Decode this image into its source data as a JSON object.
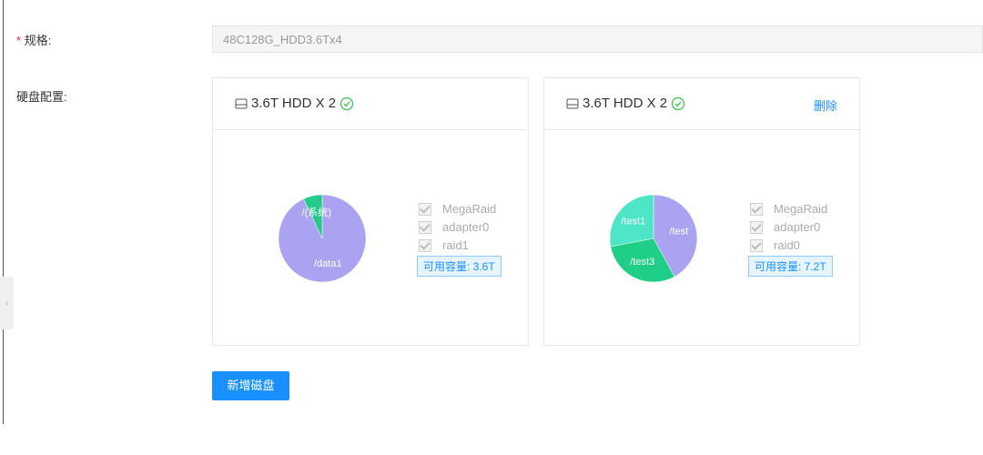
{
  "form": {
    "required_mark": "*",
    "spec_label": "规格:",
    "spec_value": "48C128G_HDD3.6Tx4",
    "disk_label": "硬盘配置:"
  },
  "disks": [
    {
      "title": "3.6T HDD X 2",
      "options": [
        "MegaRaid",
        "adapter0",
        "raid1"
      ],
      "capacity": "可用容量: 3.6T"
    },
    {
      "title": "3.6T HDD X 2",
      "action": "删除",
      "options": [
        "MegaRaid",
        "adapter0",
        "raid0"
      ],
      "capacity": "可用容量: 7.2T"
    }
  ],
  "chart_data": [
    {
      "type": "pie",
      "categories": [
        "/data1",
        "/(系统)"
      ],
      "values": [
        93,
        7
      ],
      "colors": [
        "#aaa3f2",
        "#25c98a"
      ]
    },
    {
      "type": "pie",
      "categories": [
        "/test",
        "/test3",
        "/test1"
      ],
      "values": [
        42,
        30,
        28
      ],
      "colors": [
        "#aaa3f2",
        "#1fcf87",
        "#4ee6c6"
      ]
    }
  ],
  "add_button": "新增磁盘"
}
